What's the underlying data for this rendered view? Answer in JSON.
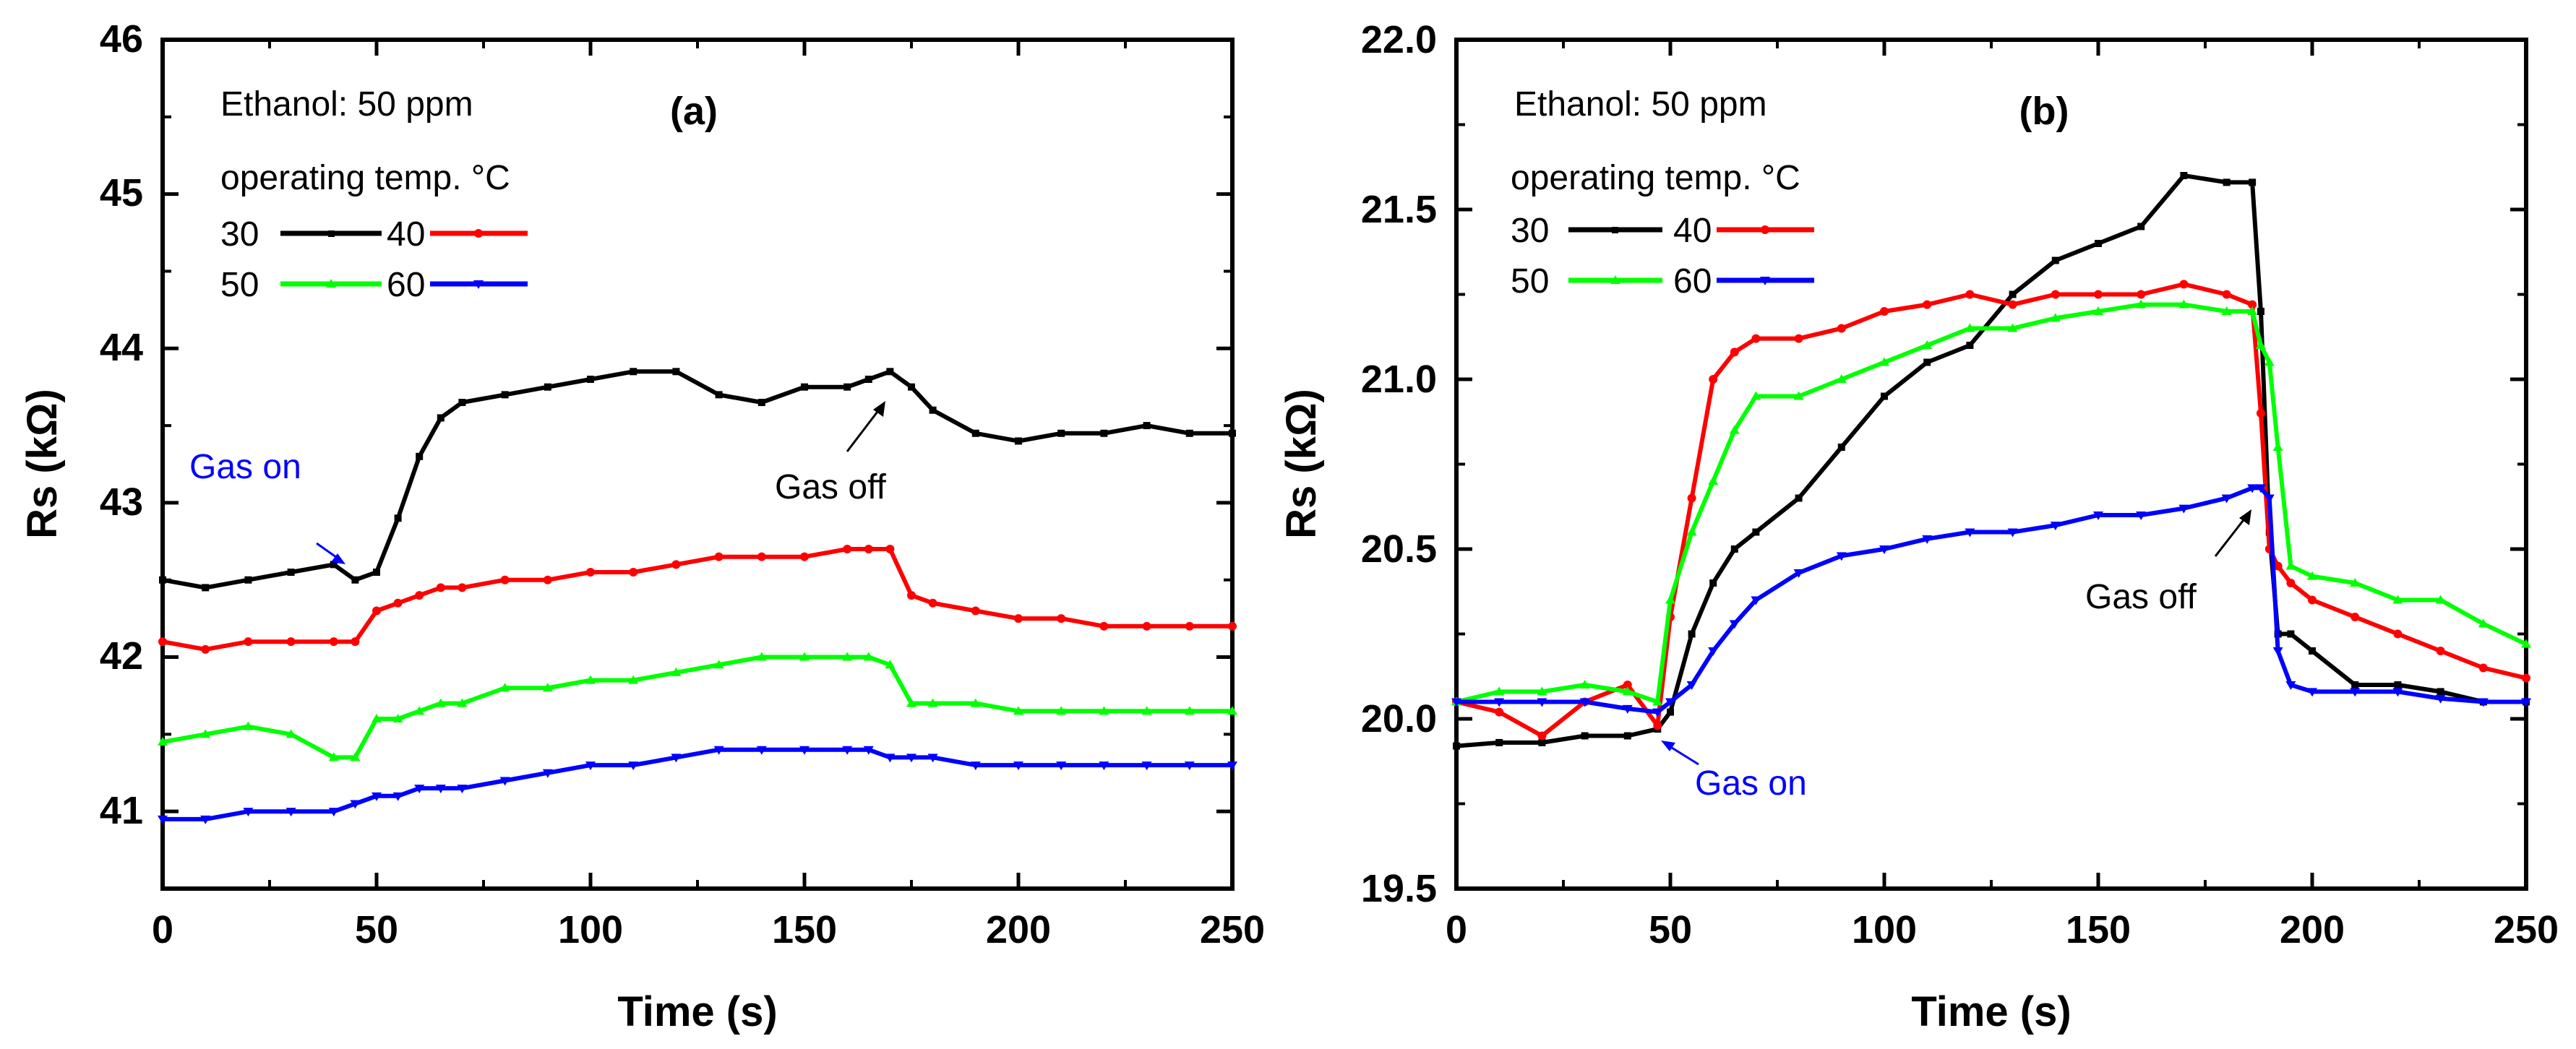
{
  "chart_data": [
    {
      "type": "line",
      "panel_label": "(a)",
      "xlabel": "Time (s)",
      "ylabel": "Rs (kΩ)",
      "xlim": [
        0,
        250
      ],
      "ylim": [
        40.5,
        46
      ],
      "xticks": [
        "0",
        "50",
        "100",
        "150",
        "200",
        "250"
      ],
      "yticks": [
        "41",
        "42",
        "43",
        "44",
        "45",
        "46"
      ],
      "grid": false,
      "annotations": {
        "condition": "Ethanol: 50 ppm",
        "legend_title": "operating temp. °C",
        "gas_on": "Gas on",
        "gas_off": "Gas off"
      },
      "x": [
        0,
        10,
        20,
        30,
        40,
        45,
        50,
        55,
        60,
        65,
        70,
        80,
        90,
        100,
        110,
        120,
        130,
        140,
        150,
        160,
        165,
        170,
        175,
        180,
        190,
        200,
        210,
        220,
        230,
        240,
        250
      ],
      "series": [
        {
          "name": "30",
          "color": "#000000",
          "marker": "square",
          "values": [
            42.5,
            42.45,
            42.5,
            42.55,
            42.6,
            42.5,
            42.55,
            42.9,
            43.3,
            43.55,
            43.65,
            43.7,
            43.75,
            43.8,
            43.85,
            43.85,
            43.7,
            43.65,
            43.75,
            43.75,
            43.8,
            43.85,
            43.75,
            43.6,
            43.45,
            43.4,
            43.45,
            43.45,
            43.5,
            43.45,
            43.45
          ]
        },
        {
          "name": "40",
          "color": "#ff0000",
          "marker": "circle",
          "values": [
            42.1,
            42.05,
            42.1,
            42.1,
            42.1,
            42.1,
            42.3,
            42.35,
            42.4,
            42.45,
            42.45,
            42.5,
            42.5,
            42.55,
            42.55,
            42.6,
            42.65,
            42.65,
            42.65,
            42.7,
            42.7,
            42.7,
            42.4,
            42.35,
            42.3,
            42.25,
            42.25,
            42.2,
            42.2,
            42.2,
            42.2
          ]
        },
        {
          "name": "50",
          "color": "#00ff00",
          "marker": "triangle-up",
          "values": [
            41.45,
            41.5,
            41.55,
            41.5,
            41.35,
            41.35,
            41.6,
            41.6,
            41.65,
            41.7,
            41.7,
            41.8,
            41.8,
            41.85,
            41.85,
            41.9,
            41.95,
            42.0,
            42.0,
            42.0,
            42.0,
            41.95,
            41.7,
            41.7,
            41.7,
            41.65,
            41.65,
            41.65,
            41.65,
            41.65,
            41.65
          ]
        },
        {
          "name": "60",
          "color": "#0000ff",
          "marker": "triangle-down",
          "values": [
            40.95,
            40.95,
            41.0,
            41.0,
            41.0,
            41.05,
            41.1,
            41.1,
            41.15,
            41.15,
            41.15,
            41.2,
            41.25,
            41.3,
            41.3,
            41.35,
            41.4,
            41.4,
            41.4,
            41.4,
            41.4,
            41.35,
            41.35,
            41.35,
            41.3,
            41.3,
            41.3,
            41.3,
            41.3,
            41.3,
            41.3
          ]
        }
      ]
    },
    {
      "type": "line",
      "panel_label": "(b)",
      "xlabel": "Time (s)",
      "ylabel": "Rs (kΩ)",
      "xlim": [
        0,
        250
      ],
      "ylim": [
        19.5,
        22.0
      ],
      "xticks": [
        "0",
        "50",
        "100",
        "150",
        "200",
        "250"
      ],
      "yticks": [
        "19.5",
        "20.0",
        "20.5",
        "21.0",
        "21.5",
        "22.0"
      ],
      "grid": false,
      "annotations": {
        "condition": "Ethanol: 50 ppm",
        "legend_title": "operating temp. °C",
        "gas_on": "Gas on",
        "gas_off": "Gas off"
      },
      "x": [
        0,
        10,
        20,
        30,
        40,
        47,
        50,
        55,
        60,
        65,
        70,
        80,
        90,
        100,
        110,
        120,
        130,
        140,
        150,
        160,
        170,
        180,
        186,
        188,
        190,
        192,
        195,
        200,
        210,
        220,
        230,
        240,
        250
      ],
      "series": [
        {
          "name": "30",
          "color": "#000000",
          "marker": "square",
          "values": [
            19.92,
            19.93,
            19.93,
            19.95,
            19.95,
            19.97,
            20.02,
            20.25,
            20.4,
            20.5,
            20.55,
            20.65,
            20.8,
            20.95,
            21.05,
            21.1,
            21.25,
            21.35,
            21.4,
            21.45,
            21.6,
            21.58,
            21.58,
            21.2,
            20.55,
            20.25,
            20.25,
            20.2,
            20.1,
            20.1,
            20.08,
            20.05,
            20.05
          ]
        },
        {
          "name": "40",
          "color": "#ff0000",
          "marker": "circle",
          "values": [
            20.05,
            20.02,
            19.95,
            20.05,
            20.1,
            19.98,
            20.3,
            20.65,
            21.0,
            21.08,
            21.12,
            21.12,
            21.15,
            21.2,
            21.22,
            21.25,
            21.22,
            21.25,
            21.25,
            21.25,
            21.28,
            21.25,
            21.22,
            20.9,
            20.5,
            20.45,
            20.4,
            20.35,
            20.3,
            20.25,
            20.2,
            20.15,
            20.12
          ]
        },
        {
          "name": "50",
          "color": "#00ff00",
          "marker": "triangle-up",
          "values": [
            20.05,
            20.08,
            20.08,
            20.1,
            20.08,
            20.05,
            20.35,
            20.55,
            20.7,
            20.85,
            20.95,
            20.95,
            21.0,
            21.05,
            21.1,
            21.15,
            21.15,
            21.18,
            21.2,
            21.22,
            21.22,
            21.2,
            21.2,
            21.1,
            21.05,
            20.8,
            20.45,
            20.42,
            20.4,
            20.35,
            20.35,
            20.28,
            20.22
          ]
        },
        {
          "name": "60",
          "color": "#0000ff",
          "marker": "triangle-down",
          "values": [
            20.05,
            20.05,
            20.05,
            20.05,
            20.03,
            20.02,
            20.05,
            20.1,
            20.2,
            20.28,
            20.35,
            20.43,
            20.48,
            20.5,
            20.53,
            20.55,
            20.55,
            20.57,
            20.6,
            20.6,
            20.62,
            20.65,
            20.68,
            20.68,
            20.65,
            20.2,
            20.1,
            20.08,
            20.08,
            20.08,
            20.06,
            20.05,
            20.05
          ]
        }
      ]
    }
  ]
}
